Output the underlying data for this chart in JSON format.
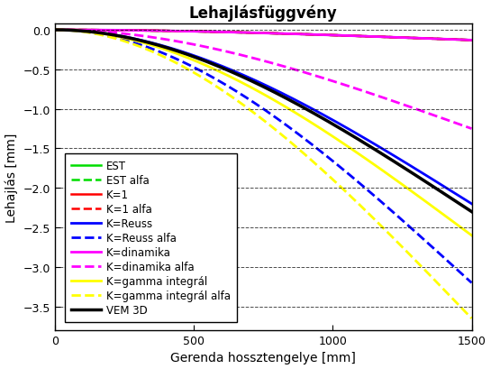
{
  "title": "Lehajlásfüggvény",
  "xlabel": "Gerenda hossztengelye [mm]",
  "ylabel": "Lehajlás [mm]",
  "x_max": 1500,
  "ylim": [
    -3.8,
    0.08
  ],
  "xlim": [
    0,
    1500
  ],
  "lines": [
    {
      "label": "EST",
      "color": "#00dd00",
      "style": "solid",
      "end_val": -0.13,
      "lw": 1.8
    },
    {
      "label": "EST alfa",
      "color": "#00dd00",
      "style": "dashed",
      "end_val": -0.13,
      "lw": 1.8
    },
    {
      "label": "K=1",
      "color": "#ff0000",
      "style": "solid",
      "end_val": -0.13,
      "lw": 1.8
    },
    {
      "label": "K=1 alfa",
      "color": "#ff0000",
      "style": "dashed",
      "end_val": -0.13,
      "lw": 1.8
    },
    {
      "label": "K=Reuss",
      "color": "#0000ff",
      "style": "solid",
      "end_val": -2.2,
      "lw": 2.0
    },
    {
      "label": "K=Reuss alfa",
      "color": "#0000ff",
      "style": "dashed",
      "end_val": -3.2,
      "lw": 2.0
    },
    {
      "label": "K=dinamika",
      "color": "#ff00ff",
      "style": "solid",
      "end_val": -0.13,
      "lw": 2.0
    },
    {
      "label": "K=dinamika alfa",
      "color": "#ff00ff",
      "style": "dashed",
      "end_val": -1.25,
      "lw": 2.0
    },
    {
      "label": "K=gamma integrál",
      "color": "#ffff00",
      "style": "solid",
      "end_val": -2.6,
      "lw": 2.0
    },
    {
      "label": "K=gamma integrál alfa",
      "color": "#ffff00",
      "style": "dashed",
      "end_val": -3.65,
      "lw": 2.0
    },
    {
      "label": "VEM 3D",
      "color": "#000000",
      "style": "solid",
      "end_val": -2.3,
      "lw": 2.5
    }
  ],
  "legend_loc": "lower left",
  "yticks": [
    0,
    -0.5,
    -1.0,
    -1.5,
    -2.0,
    -2.5,
    -3.0,
    -3.5
  ],
  "xticks": [
    0,
    500,
    1000,
    1500
  ],
  "curve_power": 2.0,
  "fig_bg": "#ffffff",
  "plot_bg": "#ffffff",
  "title_fontsize": 12,
  "axis_fontsize": 10,
  "tick_fontsize": 9,
  "legend_fontsize": 8.5
}
